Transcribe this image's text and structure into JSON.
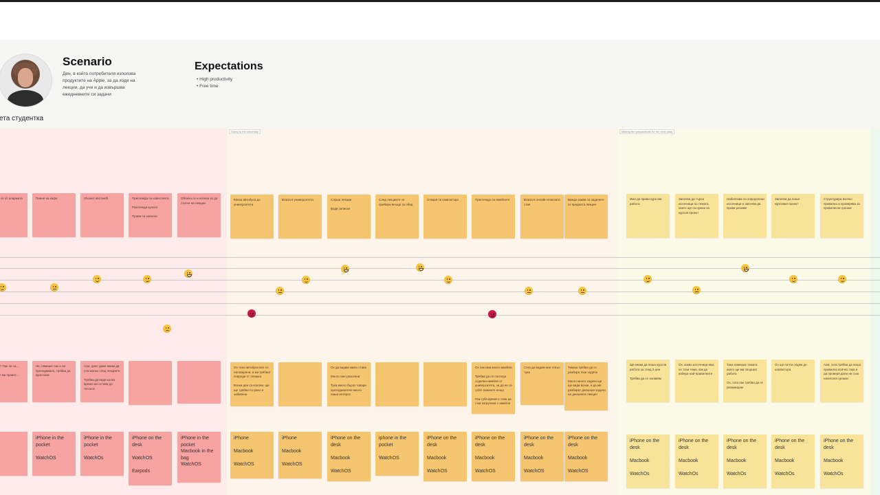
{
  "persona": {
    "name": "ета студентка",
    "scenario_title": "Scenario",
    "scenario_text": "Ден, в който потребителя използва продуктите на Apple, за да ходи на лекции, да учи и да извършва ежедневните си задачи",
    "expectations_title": "Expectations",
    "expectations": [
      "High productivity",
      "Free time"
    ]
  },
  "phases": [
    {
      "label": "",
      "color": "#fdecea"
    },
    {
      "label": "Going to the university",
      "color": "#fdf5ea"
    },
    {
      "label": "Making the preparations for the next class",
      "color": "#fbf9e8"
    },
    {
      "label": "",
      "color": "#eef8ec"
    }
  ],
  "actions": [
    {
      "text": "Отписва се от алармата",
      "color": "pink"
    },
    {
      "text": "Пиене на кафе",
      "color": "pink"
    },
    {
      "text": "Shower and teeth",
      "color": "pink"
    },
    {
      "text": "Преглежда си известията\n\nРазглежда купата\n\nПрави си записки",
      "color": "pink"
    },
    {
      "text": "Облича се и излиза за да стигне на лекции",
      "color": "pink"
    },
    {
      "text": "Качва автобуса до университета",
      "color": "orange"
    },
    {
      "text": "Влиза в университета",
      "color": "orange"
    },
    {
      "text": "Слуша лекции\n\nВоди записки",
      "color": "orange"
    },
    {
      "text": "След лекциите се прибира вкъщи за обяд",
      "color": "orange"
    },
    {
      "text": "Отваря си компютъра",
      "color": "orange"
    },
    {
      "text": "Преглежда си имейлите",
      "color": "orange"
    },
    {
      "text": "Влиза в онлайн класната стая",
      "color": "orange"
    },
    {
      "text": "Вижда какви са задачите от предната лекция",
      "color": "orange"
    },
    {
      "text": "Има да прави курсова работа",
      "color": "yellow"
    },
    {
      "text": "Започва да търси източници по темата, които ще са нужни за курсов проект",
      "color": "yellow"
    },
    {
      "text": "Набелязва си определени източници и започва да прави резюме",
      "color": "yellow"
    },
    {
      "text": "Започва да пише курсовия проект",
      "color": "yellow"
    },
    {
      "text": "Структурира всичко правилно и проверява за правописни грешки",
      "color": "yellow"
    }
  ],
  "emotions": [
    {
      "mood": "happy"
    },
    {
      "mood": "neutral"
    },
    {
      "mood": "happy"
    },
    {
      "mood": "happy"
    },
    {
      "mood": "grin"
    },
    {
      "mood": "sad"
    },
    {
      "mood": "angry"
    },
    {
      "mood": "neutral"
    },
    {
      "mood": "happy"
    },
    {
      "mood": "grin"
    },
    {
      "mood": "grin"
    },
    {
      "mood": "happy"
    },
    {
      "mood": "angry"
    },
    {
      "mood": "neutral"
    },
    {
      "mood": "neutral"
    },
    {
      "mood": "happy"
    },
    {
      "mood": "neutral"
    },
    {
      "mood": "grin"
    },
    {
      "mood": "happy"
    },
    {
      "mood": "happy"
    }
  ],
  "thoughts": [
    {
      "text": "Отворих? Пак ли са...\n\nДа ли ще ми правят...",
      "color": "pink"
    },
    {
      "text": "Не, нямаше пак е ни преподаване, трябва да архи каас",
      "color": "pink"
    },
    {
      "text": "Ахм, днес даже имам да уча малко след лекциите\n\nТрябва да видя колко време ми остава до теглата",
      "color": "pink"
    },
    {
      "text": "",
      "color": "pink"
    },
    {
      "text": "",
      "color": "pink"
    },
    {
      "text": "Ох тези автобуси все по натоварени, а ми трябват повреди от опашка\n\nВсеки ден са колони, ще ще трябва по-рано и забавени",
      "color": "orange"
    },
    {
      "text": "",
      "color": "orange"
    },
    {
      "text": "Ох да видим какво става\n\nМного сме разсеяни\n\nТука много бързо товари преподавателя много наша интерес",
      "color": "orange"
    },
    {
      "text": "",
      "color": "orange"
    },
    {
      "text": "",
      "color": "orange"
    },
    {
      "text": "Ох пак има много имейли\n\nТрябва да се погледа отделни имейли от университета, за да не се губят важните неща\n\nПак губя време в това да съм затрупана с имейли",
      "color": "orange"
    },
    {
      "text": "Сега да видим ние отвън тука",
      "color": "orange"
    },
    {
      "text": "Тимаш трябва да го разбера тази задача\n\nМного много задачи ще ще види всеки, и да ме разбират днешния задачи на днешната лекция",
      "color": "orange"
    },
    {
      "text": "Ще имам да пиша курсов работи за след 2 дни\n\nТрябва да се залавям",
      "color": "yellow"
    },
    {
      "text": "Ох, какво източници има по тази тема, как да избера най-правилните",
      "color": "yellow"
    },
    {
      "text": "Така намерих темата както ще ми свършат работа\n\nОх, сега пак трябва да ги резюмирам",
      "color": "yellow"
    },
    {
      "text": "Ох ще почти седям до компютъра",
      "color": "yellow"
    },
    {
      "text": "Ахм, сега трябва да пиша правилно всичко така и да проверя дали не съм написала грешки",
      "color": "yellow"
    }
  ],
  "devices": [
    {
      "text": "OS",
      "color": "pink"
    },
    {
      "text": "iPhone in the pocket\n\nWatchOS",
      "color": "pink"
    },
    {
      "text": "iPhone in the pocket\n\nWatchOs",
      "color": "pink"
    },
    {
      "text": "iPhone on the desk\n\nWatchOS\n\nEarpods",
      "color": "pink"
    },
    {
      "text": "iPhone in the pocket\nMacbook in the bag\nWatchOS",
      "color": "pink"
    },
    {
      "text": "iPhone\n\nMacbook\n\nWatchOS",
      "color": "orange"
    },
    {
      "text": "iPhone\n\nMacbook\n\nWatchOS",
      "color": "orange"
    },
    {
      "text": "iPhone on the desk\n\nMacbook\n\nWatchOS",
      "color": "orange"
    },
    {
      "text": "iphone in the pocket\n\nWatchOS",
      "color": "orange"
    },
    {
      "text": "iPhone on the desk\n\nMacbook\n\nWatchOS",
      "color": "orange"
    },
    {
      "text": "iPhone on the desk\n\nMacbook\n\nWatchOS",
      "color": "orange"
    },
    {
      "text": "iPhone on the desk\n\nMacbook\n\nWatchOS",
      "color": "orange"
    },
    {
      "text": "iPhone on the desk\n\nMacbook\n\nWatchOS",
      "color": "orange"
    },
    {
      "text": "iPhone on the desk\n\nMacbook\n\nWatchOs",
      "color": "yellow"
    },
    {
      "text": "iPhone on the desk\n\nMacbook\n\nWatchOs",
      "color": "yellow"
    },
    {
      "text": "iPhone on the desk\n\nMacbook\n\nWatchOs",
      "color": "yellow"
    },
    {
      "text": "iPhone on the desk\n\nMacbook\n\nWatchOs",
      "color": "yellow"
    },
    {
      "text": "iPhone on the desk\n\nMacbook\n\nWatchOs",
      "color": "yellow"
    }
  ]
}
